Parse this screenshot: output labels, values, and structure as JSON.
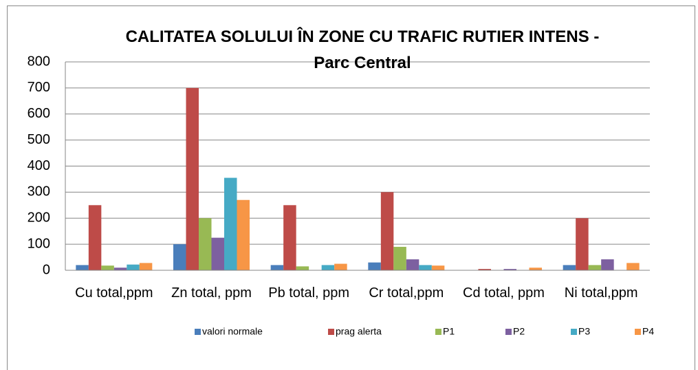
{
  "chart_data": {
    "type": "bar",
    "title": "CALITATEA SOLULUI ÎN ZONE CU TRAFIC RUTIER INTENS - Parc Central",
    "categories": [
      "Cu total,ppm",
      "Zn total, ppm",
      "Pb total, ppm",
      "Cr total,ppm",
      "Cd total, ppm",
      "Ni total,ppm"
    ],
    "series": [
      {
        "name": "valori normale",
        "color": "#4a7ebb",
        "values": [
          20,
          100,
          20,
          30,
          1,
          20
        ]
      },
      {
        "name": "prag alerta",
        "color": "#be4b48",
        "values": [
          250,
          700,
          250,
          300,
          5,
          200
        ]
      },
      {
        "name": "P1",
        "color": "#98b954",
        "values": [
          18,
          200,
          15,
          90,
          0,
          20
        ]
      },
      {
        "name": "P2",
        "color": "#7d60a0",
        "values": [
          10,
          125,
          0,
          42,
          5,
          42
        ]
      },
      {
        "name": "P3",
        "color": "#46aac5",
        "values": [
          22,
          355,
          20,
          20,
          0,
          0
        ]
      },
      {
        "name": "P4",
        "color": "#f79646",
        "values": [
          28,
          270,
          25,
          18,
          10,
          28
        ]
      }
    ],
    "ylim": [
      0,
      800
    ],
    "yticks": [
      0,
      100,
      200,
      300,
      400,
      500,
      600,
      700,
      800
    ],
    "grid": true,
    "legend": "bottom"
  }
}
